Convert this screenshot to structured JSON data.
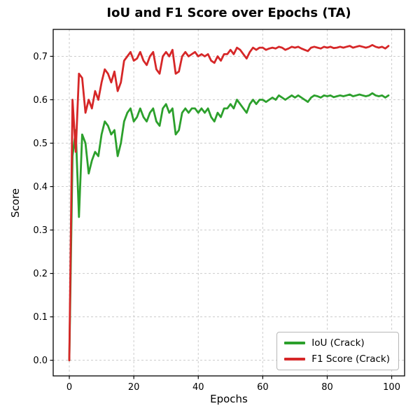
{
  "chart_data": {
    "type": "line",
    "title": "IoU and F1 Score over Epochs (TA)",
    "xlabel": "Epochs",
    "ylabel": "Score",
    "xlim": [
      -5,
      104
    ],
    "ylim": [
      -0.036,
      0.762
    ],
    "x_ticks": [
      0,
      20,
      40,
      60,
      80,
      100
    ],
    "y_ticks": [
      0.0,
      0.1,
      0.2,
      0.3,
      0.4,
      0.5,
      0.6,
      0.7
    ],
    "grid": true,
    "grid_style": "dashed",
    "grid_color": "#cccccc",
    "legend_position": "lower right",
    "x": [
      0,
      1,
      2,
      3,
      4,
      5,
      6,
      7,
      8,
      9,
      10,
      11,
      12,
      13,
      14,
      15,
      16,
      17,
      18,
      19,
      20,
      21,
      22,
      23,
      24,
      25,
      26,
      27,
      28,
      29,
      30,
      31,
      32,
      33,
      34,
      35,
      36,
      37,
      38,
      39,
      40,
      41,
      42,
      43,
      44,
      45,
      46,
      47,
      48,
      49,
      50,
      51,
      52,
      53,
      54,
      55,
      56,
      57,
      58,
      59,
      60,
      61,
      62,
      63,
      64,
      65,
      66,
      67,
      68,
      69,
      70,
      71,
      72,
      73,
      74,
      75,
      76,
      77,
      78,
      79,
      80,
      81,
      82,
      83,
      84,
      85,
      86,
      87,
      88,
      89,
      90,
      91,
      92,
      93,
      94,
      95,
      96,
      97,
      98,
      99
    ],
    "series": [
      {
        "name": "IoU (Crack)",
        "color": "#2ca02c",
        "values": [
          0.0,
          0.47,
          0.53,
          0.33,
          0.52,
          0.5,
          0.43,
          0.46,
          0.48,
          0.47,
          0.52,
          0.55,
          0.54,
          0.52,
          0.53,
          0.47,
          0.5,
          0.55,
          0.57,
          0.58,
          0.55,
          0.56,
          0.58,
          0.56,
          0.55,
          0.57,
          0.58,
          0.55,
          0.54,
          0.58,
          0.59,
          0.57,
          0.58,
          0.52,
          0.53,
          0.57,
          0.58,
          0.57,
          0.58,
          0.58,
          0.57,
          0.58,
          0.57,
          0.58,
          0.56,
          0.55,
          0.57,
          0.56,
          0.58,
          0.58,
          0.59,
          0.58,
          0.6,
          0.59,
          0.58,
          0.57,
          0.59,
          0.6,
          0.59,
          0.6,
          0.6,
          0.595,
          0.6,
          0.605,
          0.6,
          0.61,
          0.605,
          0.6,
          0.605,
          0.61,
          0.605,
          0.61,
          0.605,
          0.6,
          0.595,
          0.605,
          0.61,
          0.608,
          0.605,
          0.61,
          0.608,
          0.61,
          0.606,
          0.608,
          0.61,
          0.608,
          0.61,
          0.612,
          0.608,
          0.61,
          0.612,
          0.61,
          0.608,
          0.61,
          0.615,
          0.61,
          0.608,
          0.61,
          0.605,
          0.61
        ]
      },
      {
        "name": "F1 Score (Crack)",
        "color": "#d62728",
        "values": [
          0.0,
          0.6,
          0.48,
          0.66,
          0.65,
          0.57,
          0.6,
          0.58,
          0.62,
          0.6,
          0.64,
          0.67,
          0.66,
          0.64,
          0.665,
          0.62,
          0.64,
          0.69,
          0.7,
          0.71,
          0.69,
          0.695,
          0.71,
          0.69,
          0.68,
          0.7,
          0.71,
          0.67,
          0.66,
          0.7,
          0.71,
          0.7,
          0.715,
          0.66,
          0.665,
          0.7,
          0.71,
          0.7,
          0.705,
          0.71,
          0.7,
          0.705,
          0.7,
          0.705,
          0.69,
          0.685,
          0.7,
          0.69,
          0.705,
          0.705,
          0.715,
          0.705,
          0.72,
          0.715,
          0.705,
          0.695,
          0.71,
          0.72,
          0.715,
          0.72,
          0.72,
          0.715,
          0.718,
          0.72,
          0.718,
          0.722,
          0.72,
          0.715,
          0.718,
          0.722,
          0.72,
          0.722,
          0.718,
          0.715,
          0.712,
          0.72,
          0.722,
          0.72,
          0.718,
          0.722,
          0.72,
          0.722,
          0.719,
          0.72,
          0.722,
          0.72,
          0.722,
          0.724,
          0.72,
          0.722,
          0.724,
          0.722,
          0.72,
          0.722,
          0.726,
          0.722,
          0.72,
          0.722,
          0.718,
          0.724
        ]
      }
    ]
  }
}
